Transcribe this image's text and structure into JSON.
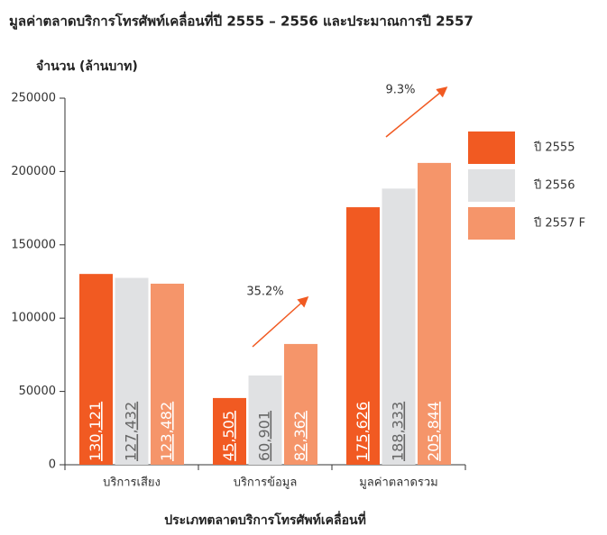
{
  "chart_data": {
    "type": "bar",
    "title": "มูลค่าตลาดบริการโทรศัพท์เคลื่อนที่ปี 2555 – 2556 และประมาณการปี 2557",
    "y_label": "จำนวน (ล้านบาท)",
    "x_label": "ประเภทตลาดบริการโทรศัพท์เคลื่อนที่",
    "categories": [
      "บริการเสียง",
      "บริการข้อมูล",
      "มูลค่าตลาดรวม"
    ],
    "series": [
      {
        "name": "ปี 2555",
        "color": "#f15a22",
        "values": [
          130121,
          45505,
          175626
        ],
        "value_labels": [
          "130,121",
          "45,505",
          "175,626"
        ]
      },
      {
        "name": "ปี 2556",
        "color": "#e0e1e3",
        "values": [
          127432,
          60901,
          188333
        ],
        "value_labels": [
          "127,432",
          "60,901",
          "188,333"
        ]
      },
      {
        "name": "ปี 2557 F",
        "color": "#f5956a",
        "values": [
          123482,
          82362,
          205844
        ],
        "value_labels": [
          "123,482",
          "82,362",
          "205,844"
        ]
      }
    ],
    "annotations": [
      "35.2%",
      "9.3%"
    ],
    "ylim": [
      0,
      250000
    ],
    "yticks": [
      0,
      50000,
      100000,
      150000,
      200000,
      250000
    ],
    "legend": "right"
  }
}
